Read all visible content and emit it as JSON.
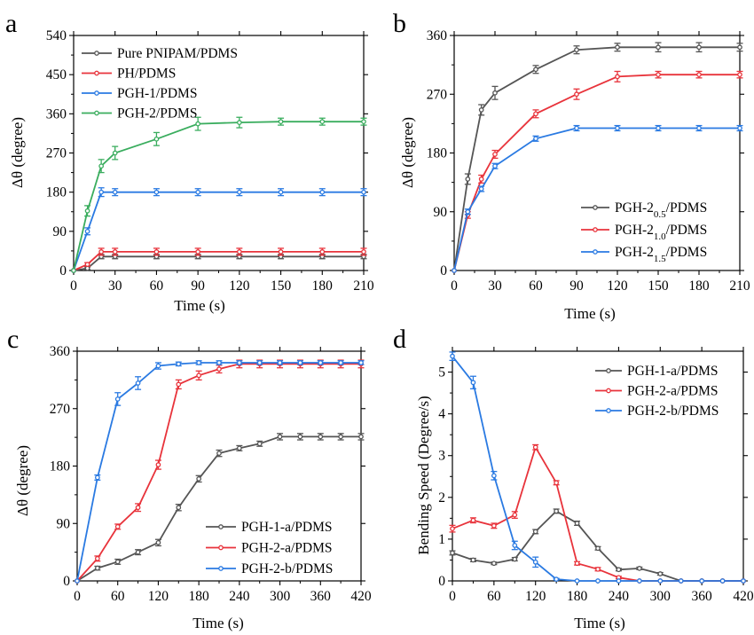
{
  "chart_data": [
    {
      "panel": "a",
      "type": "line",
      "xlabel": "Time (s)",
      "ylabel": "Δθ (degree)",
      "xlim": [
        0,
        210
      ],
      "ylim": [
        0,
        540
      ],
      "xticks": [
        0,
        30,
        60,
        90,
        120,
        150,
        180,
        210
      ],
      "yticks": [
        0,
        90,
        180,
        270,
        360,
        450,
        540
      ],
      "legend_position": "top-left",
      "series": [
        {
          "name": "Pure PNIPAM/PDMS",
          "color": "#555555",
          "x": [
            0,
            10,
            20,
            30,
            60,
            90,
            120,
            150,
            180,
            210
          ],
          "y": [
            0,
            5,
            32,
            32,
            32,
            32,
            32,
            32,
            32,
            32
          ],
          "err": [
            0,
            3,
            5,
            5,
            5,
            5,
            5,
            5,
            5,
            5
          ]
        },
        {
          "name": "PH/PDMS",
          "color": "#e8333b",
          "x": [
            0,
            10,
            20,
            30,
            60,
            90,
            120,
            150,
            180,
            210
          ],
          "y": [
            0,
            14,
            43,
            43,
            43,
            43,
            43,
            43,
            43,
            43
          ],
          "err": [
            0,
            4,
            8,
            8,
            8,
            8,
            8,
            8,
            8,
            8
          ]
        },
        {
          "name": "PGH-1/PDMS",
          "color": "#2a7ae2",
          "x": [
            0,
            10,
            20,
            30,
            60,
            90,
            120,
            150,
            180,
            210
          ],
          "y": [
            0,
            90,
            180,
            180,
            180,
            180,
            180,
            180,
            180,
            180
          ],
          "err": [
            0,
            8,
            10,
            8,
            8,
            8,
            8,
            8,
            8,
            8
          ]
        },
        {
          "name": "PGH-2/PDMS",
          "color": "#3aad5e",
          "x": [
            0,
            10,
            20,
            30,
            60,
            90,
            120,
            150,
            180,
            210
          ],
          "y": [
            0,
            137,
            240,
            270,
            302,
            337,
            340,
            342,
            342,
            342
          ],
          "err": [
            0,
            12,
            15,
            15,
            15,
            15,
            12,
            8,
            8,
            8
          ]
        }
      ]
    },
    {
      "panel": "b",
      "type": "line",
      "xlabel": "Time (s)",
      "ylabel": "Δθ (degree)",
      "xlim": [
        0,
        210
      ],
      "ylim": [
        0,
        360
      ],
      "xticks": [
        0,
        30,
        60,
        90,
        120,
        150,
        180,
        210
      ],
      "yticks": [
        0,
        90,
        180,
        270,
        360
      ],
      "legend_position": "bottom-right",
      "series": [
        {
          "name": "PGH-2",
          "sub": "0.5",
          "suffix": "/PDMS",
          "color": "#555555",
          "x": [
            0,
            10,
            20,
            30,
            60,
            90,
            120,
            150,
            180,
            210
          ],
          "y": [
            0,
            140,
            246,
            272,
            308,
            338,
            342,
            342,
            342,
            342
          ],
          "err": [
            0,
            8,
            8,
            10,
            6,
            6,
            6,
            7,
            7,
            6
          ]
        },
        {
          "name": "PGH-2",
          "sub": "1.0",
          "suffix": "/PDMS",
          "color": "#e8333b",
          "x": [
            0,
            10,
            20,
            30,
            60,
            90,
            120,
            150,
            180,
            210
          ],
          "y": [
            0,
            85,
            140,
            178,
            240,
            270,
            297,
            300,
            300,
            300
          ],
          "err": [
            0,
            5,
            6,
            6,
            6,
            8,
            8,
            5,
            5,
            5
          ]
        },
        {
          "name": "PGH-2",
          "sub": "1.5",
          "suffix": "/PDMS",
          "color": "#2a7ae2",
          "x": [
            0,
            10,
            20,
            30,
            60,
            90,
            120,
            150,
            180,
            210
          ],
          "y": [
            0,
            90,
            125,
            160,
            202,
            218,
            218,
            218,
            218,
            218
          ],
          "err": [
            0,
            4,
            4,
            4,
            4,
            4,
            4,
            4,
            4,
            4
          ]
        }
      ]
    },
    {
      "panel": "c",
      "type": "line",
      "xlabel": "Time (s)",
      "ylabel": "Δθ (degree)",
      "xlim": [
        0,
        420
      ],
      "ylim": [
        0,
        360
      ],
      "xticks": [
        0,
        60,
        120,
        180,
        240,
        300,
        360,
        420
      ],
      "yticks": [
        0,
        90,
        180,
        270,
        360
      ],
      "legend_position": "bottom-right",
      "series": [
        {
          "name": "PGH-1-a/PDMS",
          "color": "#555555",
          "x": [
            0,
            30,
            60,
            90,
            120,
            150,
            180,
            210,
            240,
            270,
            300,
            330,
            360,
            390,
            420
          ],
          "y": [
            0,
            20,
            30,
            45,
            60,
            115,
            160,
            200,
            208,
            215,
            226,
            226,
            226,
            226,
            226
          ],
          "err": [
            0,
            3,
            4,
            4,
            5,
            5,
            5,
            5,
            4,
            4,
            5,
            5,
            5,
            5,
            5
          ]
        },
        {
          "name": "PGH-2-a/PDMS",
          "color": "#e8333b",
          "x": [
            0,
            30,
            60,
            90,
            120,
            150,
            180,
            210,
            240,
            270,
            300,
            330,
            360,
            390,
            420
          ],
          "y": [
            0,
            35,
            85,
            115,
            182,
            308,
            322,
            332,
            340,
            340,
            340,
            340,
            340,
            340,
            340
          ],
          "err": [
            0,
            4,
            4,
            6,
            7,
            7,
            7,
            6,
            6,
            6,
            6,
            6,
            6,
            6,
            6
          ]
        },
        {
          "name": "PGH-2-b/PDMS",
          "color": "#2a7ae2",
          "x": [
            0,
            30,
            60,
            90,
            120,
            150,
            180,
            210,
            240,
            270,
            300,
            330,
            360,
            390,
            420
          ],
          "y": [
            0,
            162,
            285,
            310,
            337,
            340,
            342,
            342,
            342,
            342,
            342,
            342,
            342,
            342,
            342
          ],
          "err": [
            0,
            4,
            10,
            10,
            5,
            3,
            3,
            3,
            3,
            3,
            3,
            3,
            3,
            3,
            3
          ]
        }
      ]
    },
    {
      "panel": "d",
      "type": "line",
      "xlabel": "Time (s)",
      "ylabel": "Bending Speed (Degree/s)",
      "xlim": [
        0,
        420
      ],
      "ylim": [
        0,
        5.5
      ],
      "xticks": [
        0,
        60,
        120,
        180,
        240,
        300,
        360,
        420
      ],
      "yticks": [
        0,
        1,
        2,
        3,
        4,
        5
      ],
      "legend_position": "top-right",
      "series": [
        {
          "name": "PGH-1-a/PDMS",
          "color": "#555555",
          "x": [
            0,
            30,
            60,
            90,
            120,
            150,
            180,
            210,
            240,
            270,
            300,
            330,
            360,
            390,
            420
          ],
          "y": [
            0.67,
            0.5,
            0.42,
            0.52,
            1.18,
            1.67,
            1.38,
            0.78,
            0.27,
            0.3,
            0.17,
            0,
            0,
            0,
            0
          ],
          "err": [
            0.05,
            0.04,
            0.03,
            0.04,
            0.05,
            0.05,
            0.05,
            0.04,
            0.03,
            0.03,
            0.03,
            0,
            0,
            0,
            0
          ]
        },
        {
          "name": "PGH-2-a/PDMS",
          "color": "#e8333b",
          "x": [
            0,
            30,
            60,
            90,
            120,
            150,
            180,
            210,
            240,
            270,
            300,
            330,
            360,
            390,
            420
          ],
          "y": [
            1.25,
            1.45,
            1.32,
            1.58,
            3.2,
            2.35,
            0.42,
            0.28,
            0.08,
            0,
            0,
            0,
            0,
            0,
            0
          ],
          "err": [
            0.08,
            0.06,
            0.06,
            0.08,
            0.06,
            0.05,
            0.04,
            0.04,
            0.03,
            0,
            0,
            0,
            0,
            0,
            0
          ]
        },
        {
          "name": "PGH-2-b/PDMS",
          "color": "#2a7ae2",
          "x": [
            0,
            30,
            60,
            90,
            120,
            150,
            180,
            210,
            240,
            270,
            300,
            330,
            360,
            390,
            420
          ],
          "y": [
            5.38,
            4.75,
            2.52,
            0.85,
            0.45,
            0.04,
            0,
            0,
            0,
            0,
            0,
            0,
            0,
            0,
            0
          ],
          "err": [
            0.1,
            0.15,
            0.1,
            0.1,
            0.12,
            0.02,
            0,
            0,
            0,
            0,
            0,
            0,
            0,
            0,
            0
          ]
        }
      ]
    }
  ]
}
